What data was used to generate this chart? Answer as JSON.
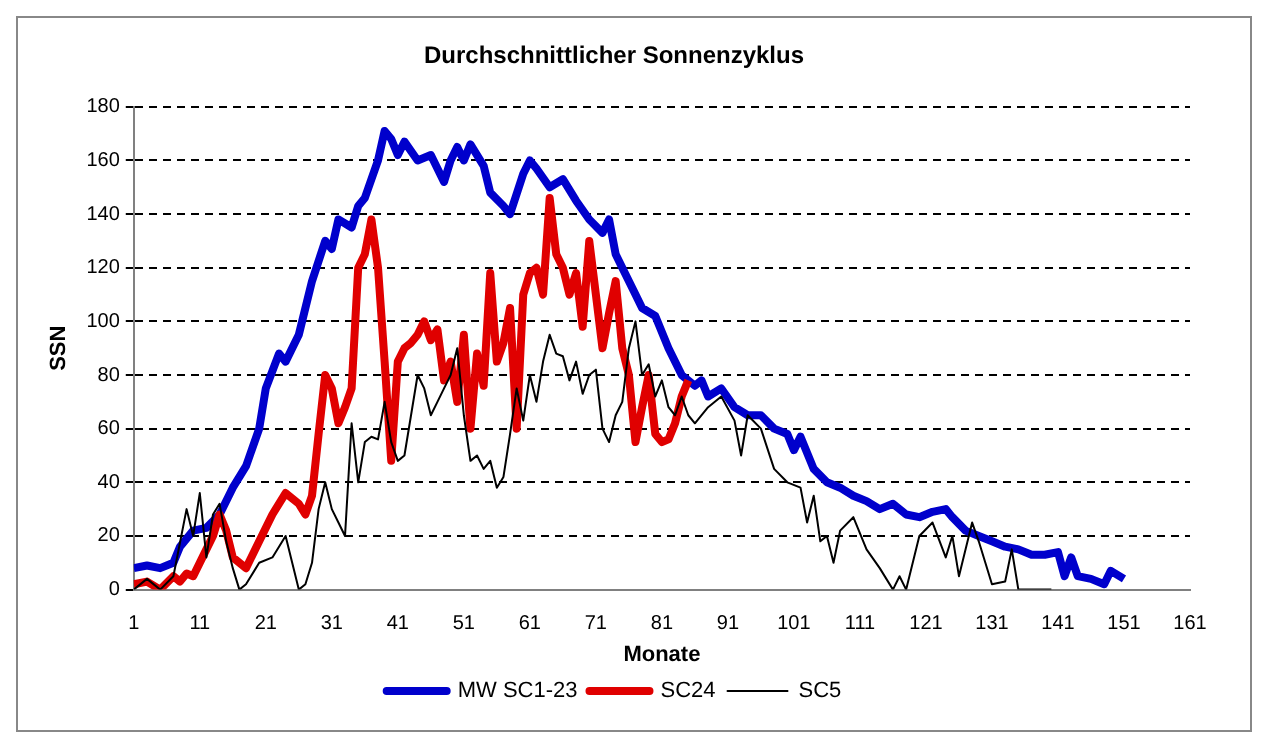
{
  "chart_data": {
    "type": "line",
    "title": "Durchschnittlicher Sonnenzyklus",
    "xlabel": "Monate",
    "ylabel": "SSN",
    "xlim": [
      1,
      161
    ],
    "xticks": [
      1,
      11,
      21,
      31,
      41,
      51,
      61,
      71,
      81,
      91,
      101,
      111,
      121,
      131,
      141,
      151,
      161
    ],
    "ylim": [
      0,
      180
    ],
    "yticks": [
      0,
      20,
      40,
      60,
      80,
      100,
      120,
      140,
      160,
      180
    ],
    "grid": "y",
    "legend": "bottom",
    "marker": "none",
    "series": [
      {
        "name": "MW SC1-23",
        "color": "#0000cc",
        "x": [
          1,
          3,
          5,
          7,
          8,
          10,
          12,
          14,
          16,
          18,
          20,
          21,
          23,
          24,
          26,
          28,
          30,
          31,
          32,
          34,
          35,
          36,
          38,
          39,
          40,
          41,
          42,
          44,
          46,
          48,
          49,
          50,
          51,
          52,
          54,
          55,
          57,
          58,
          60,
          61,
          62,
          64,
          66,
          68,
          70,
          72,
          73,
          74,
          75,
          77,
          78,
          80,
          82,
          84,
          86,
          87,
          88,
          90,
          92,
          94,
          96,
          98,
          100,
          101,
          102,
          104,
          106,
          108,
          110,
          112,
          114,
          116,
          118,
          120,
          122,
          124,
          125,
          127,
          129,
          131,
          133,
          135,
          137,
          139,
          141,
          142,
          143,
          144,
          146,
          148,
          149,
          151
        ],
        "values": [
          8,
          9,
          8,
          10,
          16,
          22,
          23,
          28,
          38,
          46,
          60,
          75,
          88,
          85,
          95,
          115,
          130,
          127,
          138,
          135,
          143,
          146,
          160,
          171,
          168,
          162,
          167,
          160,
          162,
          152,
          160,
          165,
          160,
          166,
          158,
          148,
          143,
          140,
          155,
          160,
          157,
          150,
          153,
          145,
          138,
          133,
          138,
          125,
          120,
          110,
          105,
          102,
          90,
          80,
          76,
          78,
          72,
          75,
          68,
          65,
          65,
          60,
          58,
          52,
          57,
          45,
          40,
          38,
          35,
          33,
          30,
          32,
          28,
          27,
          29,
          30,
          27,
          22,
          20,
          18,
          16,
          15,
          13,
          13,
          14,
          5,
          12,
          5,
          4,
          2,
          7,
          4
        ]
      },
      {
        "name": "SC24",
        "color": "#e00000",
        "x": [
          1,
          3,
          5,
          7,
          8,
          9,
          10,
          12,
          13,
          14,
          15,
          16,
          18,
          20,
          22,
          24,
          26,
          27,
          28,
          29,
          30,
          31,
          32,
          33,
          34,
          35,
          36,
          37,
          38,
          39,
          40,
          41,
          42,
          43,
          44,
          45,
          46,
          47,
          48,
          49,
          50,
          51,
          52,
          53,
          54,
          55,
          56,
          57,
          58,
          59,
          60,
          61,
          62,
          63,
          64,
          65,
          66,
          67,
          68,
          69,
          70,
          71,
          72,
          73,
          74,
          75,
          76,
          77,
          78,
          79,
          80,
          81,
          82,
          83,
          84,
          85
        ],
        "values": [
          2,
          3,
          0,
          5,
          3,
          6,
          5,
          15,
          20,
          28,
          22,
          12,
          8,
          18,
          28,
          36,
          32,
          28,
          35,
          58,
          80,
          75,
          62,
          68,
          75,
          120,
          125,
          138,
          120,
          85,
          48,
          85,
          90,
          92,
          95,
          100,
          93,
          97,
          78,
          85,
          70,
          95,
          60,
          88,
          76,
          118,
          85,
          92,
          105,
          60,
          110,
          118,
          120,
          110,
          146,
          125,
          120,
          110,
          118,
          98,
          130,
          110,
          90,
          103,
          115,
          90,
          80,
          55,
          68,
          80,
          58,
          55,
          56,
          62,
          72,
          78
        ]
      },
      {
        "name": "SC5",
        "color": "#000000",
        "x": [
          1,
          3,
          5,
          7,
          9,
          10,
          11,
          12,
          13,
          14,
          15,
          16,
          17,
          18,
          20,
          22,
          24,
          25,
          26,
          27,
          28,
          29,
          30,
          31,
          32,
          33,
          34,
          35,
          36,
          37,
          38,
          39,
          40,
          41,
          42,
          44,
          45,
          46,
          47,
          48,
          49,
          50,
          51,
          52,
          53,
          54,
          55,
          56,
          57,
          58,
          59,
          60,
          61,
          62,
          63,
          64,
          65,
          66,
          67,
          68,
          69,
          70,
          71,
          72,
          73,
          74,
          75,
          76,
          77,
          78,
          79,
          80,
          81,
          82,
          83,
          84,
          85,
          86,
          88,
          90,
          92,
          93,
          94,
          96,
          98,
          100,
          102,
          103,
          104,
          105,
          106,
          107,
          108,
          110,
          112,
          114,
          116,
          117,
          118,
          120,
          122,
          124,
          125,
          126,
          128,
          129,
          130,
          131,
          133,
          134,
          135,
          137,
          140
        ],
        "values": [
          0,
          4,
          0,
          5,
          30,
          20,
          36,
          12,
          28,
          32,
          18,
          8,
          0,
          2,
          10,
          12,
          20,
          10,
          0,
          2,
          10,
          30,
          40,
          30,
          25,
          20,
          62,
          40,
          55,
          57,
          56,
          70,
          55,
          48,
          50,
          80,
          75,
          65,
          70,
          75,
          80,
          90,
          65,
          48,
          50,
          45,
          48,
          38,
          42,
          58,
          75,
          63,
          80,
          70,
          85,
          95,
          88,
          87,
          78,
          85,
          73,
          80,
          82,
          60,
          55,
          65,
          70,
          90,
          100,
          80,
          84,
          72,
          78,
          68,
          65,
          72,
          65,
          62,
          68,
          72,
          63,
          50,
          65,
          60,
          45,
          40,
          38,
          25,
          35,
          18,
          20,
          10,
          22,
          27,
          15,
          8,
          0,
          5,
          0,
          20,
          25,
          12,
          20,
          5,
          25,
          18,
          10,
          2,
          3,
          15,
          0,
          0,
          0
        ]
      }
    ]
  }
}
